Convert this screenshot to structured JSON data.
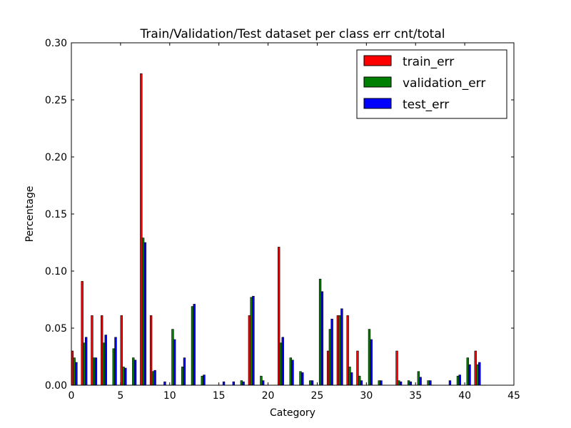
{
  "chart_data": {
    "type": "bar",
    "title": "Train/Validation/Test dataset per class err cnt/total",
    "xlabel": "Category",
    "ylabel": "Percentage",
    "xlim": [
      0,
      45
    ],
    "ylim": [
      0,
      0.3
    ],
    "xticks": [
      "0",
      "5",
      "10",
      "15",
      "20",
      "25",
      "30",
      "35",
      "40",
      "45"
    ],
    "yticks": [
      "0.00",
      "0.05",
      "0.10",
      "0.15",
      "0.20",
      "0.25",
      "0.30"
    ],
    "grid": false,
    "legend_position": "top-right",
    "categories": [
      0,
      1,
      2,
      3,
      4,
      5,
      6,
      7,
      8,
      9,
      10,
      11,
      12,
      13,
      14,
      15,
      16,
      17,
      18,
      19,
      20,
      21,
      22,
      23,
      24,
      25,
      26,
      27,
      28,
      29,
      30,
      31,
      32,
      33,
      34,
      35,
      36,
      37,
      38,
      39,
      40,
      41,
      42
    ],
    "series": [
      {
        "name": "train_err",
        "color": "#ff0000",
        "values": [
          0.03,
          0.091,
          0.061,
          0.061,
          0,
          0.061,
          0,
          0.273,
          0.061,
          0,
          0,
          0,
          0,
          0,
          0,
          0,
          0,
          0,
          0.061,
          0,
          0,
          0.121,
          0,
          0,
          0,
          0,
          0.03,
          0.061,
          0.061,
          0.03,
          0,
          0,
          0,
          0.03,
          0,
          0,
          0,
          0,
          0,
          0,
          0,
          0.03,
          0
        ]
      },
      {
        "name": "validation_err",
        "color": "#008000",
        "values": [
          0.024,
          0.037,
          0.024,
          0.037,
          0.032,
          0.016,
          0.024,
          0.129,
          0.012,
          0,
          0.049,
          0.016,
          0.069,
          0.008,
          0,
          0,
          0,
          0.004,
          0.077,
          0.008,
          0,
          0.037,
          0.024,
          0.012,
          0.004,
          0.093,
          0.049,
          0.061,
          0.016,
          0.008,
          0.049,
          0.004,
          0,
          0.004,
          0.004,
          0.012,
          0.004,
          0,
          0,
          0.008,
          0.024,
          0.018,
          0
        ]
      },
      {
        "name": "test_err",
        "color": "#0000ff",
        "values": [
          0.02,
          0.042,
          0.024,
          0.044,
          0.042,
          0.015,
          0.022,
          0.125,
          0.013,
          0.003,
          0.04,
          0.024,
          0.071,
          0.009,
          0,
          0.003,
          0.003,
          0.003,
          0.078,
          0.004,
          0,
          0.042,
          0.022,
          0.011,
          0.004,
          0.082,
          0.058,
          0.067,
          0.011,
          0.004,
          0.04,
          0.004,
          0,
          0.003,
          0.003,
          0.007,
          0.004,
          0,
          0.004,
          0.009,
          0.018,
          0.02,
          0
        ]
      }
    ]
  }
}
